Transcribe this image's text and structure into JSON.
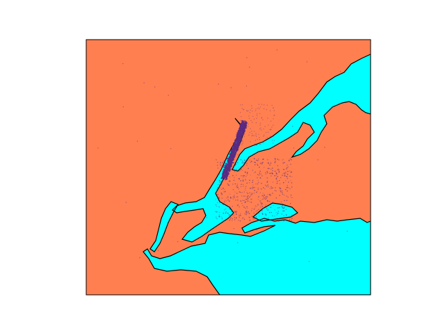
{
  "map": {
    "land_color": "#ff7f50",
    "water_color": "#00ffff",
    "coastline_color": "#000000",
    "frame_color": "#000000",
    "point_color": "#5a2a82",
    "projection": "basemap",
    "region": "New York City",
    "layers": [
      "land",
      "water",
      "coastlines",
      "scatter-points"
    ]
  }
}
